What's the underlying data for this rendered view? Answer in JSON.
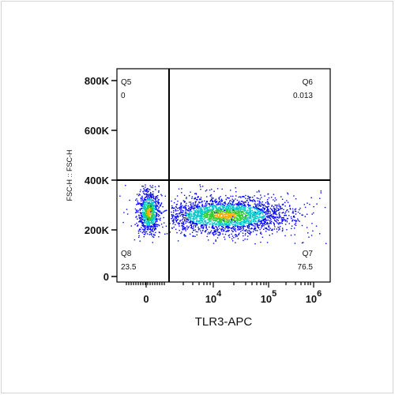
{
  "chart_data": {
    "type": "scatter",
    "xlabel": "TLR3-APC",
    "ylabel": "FSC-H :: FSC-H",
    "x_scale": "biexponential",
    "y_ticks": [
      "800K",
      "600K",
      "400K",
      "200K",
      "0"
    ],
    "y_tick_values": [
      800000,
      600000,
      400000,
      200000,
      0
    ],
    "x_ticks": [
      {
        "base": "0",
        "exp": ""
      },
      {
        "base": "10",
        "exp": "4"
      },
      {
        "base": "10",
        "exp": "5"
      },
      {
        "base": "10",
        "exp": "6"
      }
    ],
    "ylim": [
      -30000,
      880000
    ],
    "gates": {
      "x_threshold_label": "vertical gate just above 0",
      "y_threshold": 400000
    },
    "quadrants": [
      {
        "name": "Q5",
        "value": "0"
      },
      {
        "name": "Q6",
        "value": "0.013"
      },
      {
        "name": "Q7",
        "value": "76.5"
      },
      {
        "name": "Q8",
        "value": "23.5"
      }
    ],
    "colors": {
      "density_low": "#0000ff",
      "density_mid": "#00c8c8",
      "density_high": "#33cc33",
      "density_peak": "#ffaa00",
      "axis": "#000000"
    }
  }
}
